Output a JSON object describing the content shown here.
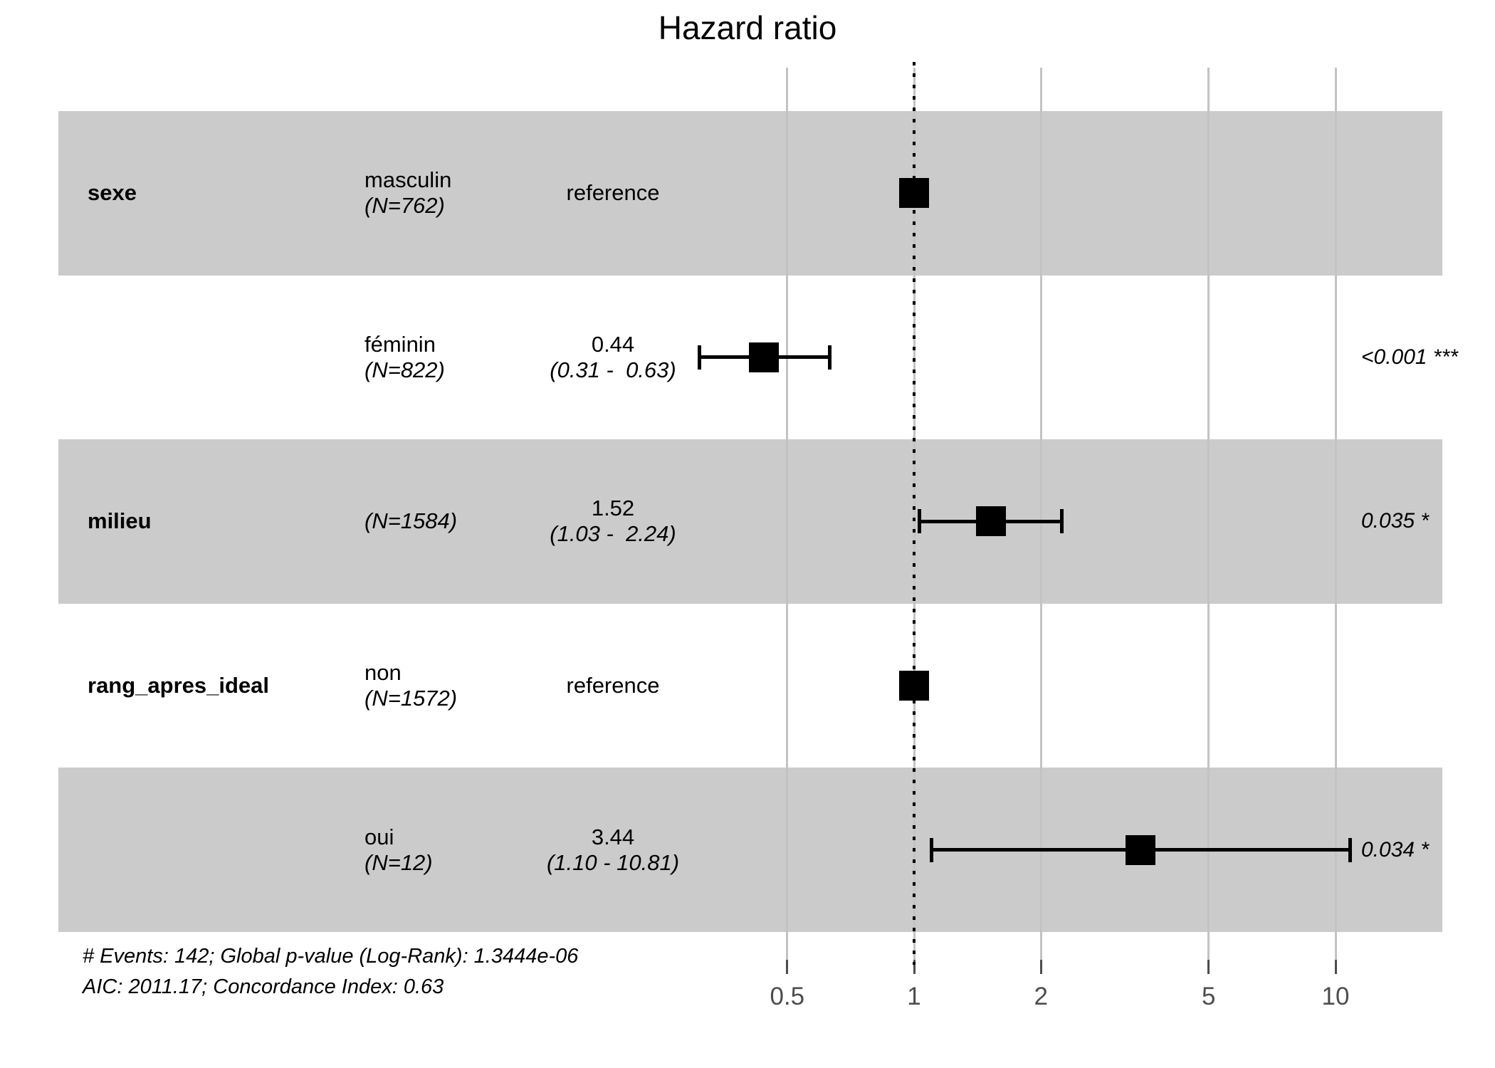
{
  "title": "Hazard ratio",
  "chart_data": {
    "type": "scatter",
    "subtype": "forest-plot",
    "title": "Hazard ratio",
    "x_scale": "log10",
    "reference_line": 1,
    "grid": "vertical-ticks-only",
    "x_ticks": [
      {
        "label": "0.5",
        "value": 0.5
      },
      {
        "label": "1",
        "value": 1
      },
      {
        "label": "2",
        "value": 2
      },
      {
        "label": "5",
        "value": 5
      },
      {
        "label": "10",
        "value": 10
      }
    ],
    "rows": [
      {
        "variable": "sexe",
        "level": "masculin",
        "n_label": "(N=762)",
        "estimate": 1,
        "reference": true,
        "estimate_label": "reference",
        "shaded": true
      },
      {
        "variable": "",
        "level": "féminin",
        "n_label": "(N=822)",
        "estimate": 0.44,
        "ci_low": 0.31,
        "ci_high": 0.63,
        "estimate_label": "0.44",
        "ci_label": "(0.31 -  0.63)",
        "p_label": "<0.001 ***",
        "shaded": false
      },
      {
        "variable": "milieu",
        "level": "",
        "n_label": "(N=1584)",
        "estimate": 1.52,
        "ci_low": 1.03,
        "ci_high": 2.24,
        "estimate_label": "1.52",
        "ci_label": "(1.03 -  2.24)",
        "p_label": "0.035 *",
        "shaded": true
      },
      {
        "variable": "rang_apres_ideal",
        "level": "non",
        "n_label": "(N=1572)",
        "estimate": 1,
        "reference": true,
        "estimate_label": "reference",
        "shaded": false
      },
      {
        "variable": "",
        "level": "oui",
        "n_label": "(N=12)",
        "estimate": 3.44,
        "ci_low": 1.1,
        "ci_high": 10.81,
        "estimate_label": "3.44",
        "ci_label": "(1.10 - 10.81)",
        "p_label": "0.034 *",
        "shaded": true
      }
    ],
    "footnotes": [
      "# Events: 142; Global p-value (Log-Rank): 1.3444e-06",
      "AIC: 2011.17; Concordance Index: 0.63"
    ]
  },
  "colors": {
    "band": "#cbcbcb",
    "gridline": "#c3c3c3",
    "axis_text": "#4d4d4d",
    "marker": "#000000",
    "background": "#ffffff"
  }
}
